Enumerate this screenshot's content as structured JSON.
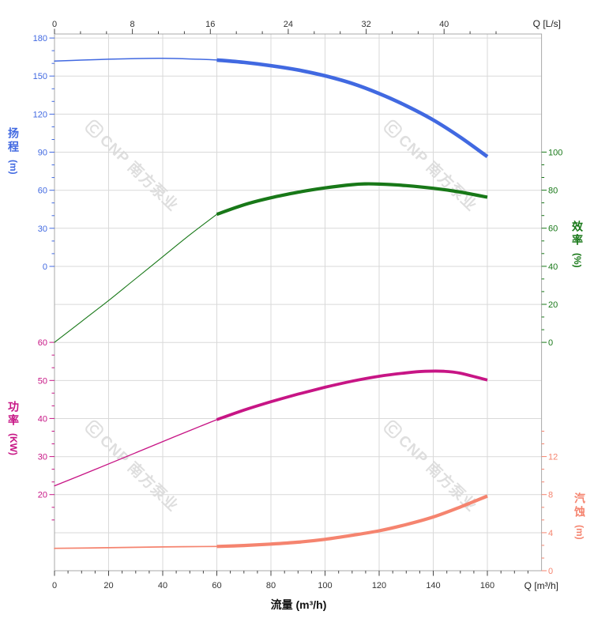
{
  "watermark": {
    "text": "CNP 南方泵业"
  },
  "chart_data": {
    "type": "line",
    "legend_position": "none",
    "grid": true,
    "axes": {
      "top": {
        "corner_label": "Q [L/s]",
        "ticks": [
          0,
          8,
          16,
          24,
          32,
          40
        ],
        "range_lps": [
          0,
          50
        ]
      },
      "bottom": {
        "axis_label": "流量 (m³/h)",
        "corner_label": "Q [m³/h]",
        "ticks": [
          0,
          20,
          40,
          60,
          80,
          100,
          120,
          140,
          160
        ],
        "range": [
          0,
          180
        ],
        "minor_step": 5
      },
      "head": {
        "label": "扬程",
        "unit": "(m)",
        "side": "left",
        "color": "#4169e1",
        "ticks": [
          180,
          150,
          120,
          90,
          60,
          30,
          0
        ],
        "range": [
          0,
          180
        ]
      },
      "efficiency": {
        "label": "效率",
        "unit": "(%)",
        "side": "right",
        "color": "#187818",
        "ticks": [
          100,
          80,
          60,
          40,
          20,
          0
        ],
        "range": [
          0,
          100
        ]
      },
      "power": {
        "label": "功率",
        "unit": "(KW)",
        "side": "left",
        "color": "#c71585",
        "ticks": [
          60,
          50,
          40,
          30,
          20
        ],
        "range": [
          0,
          60
        ]
      },
      "npsh": {
        "label": "汽蚀",
        "unit": "(m)",
        "side": "right",
        "color": "#f5846f",
        "ticks": [
          12,
          8,
          4,
          0
        ],
        "range": [
          0,
          12
        ]
      }
    },
    "series": [
      {
        "name": "head",
        "axis": "head",
        "color": "#4169e1",
        "thick_from": 60,
        "points": [
          [
            0,
            161.8
          ],
          [
            10,
            162.6
          ],
          [
            20,
            163.3
          ],
          [
            30,
            163.8
          ],
          [
            40,
            164.0
          ],
          [
            50,
            163.5
          ],
          [
            60,
            162.7
          ],
          [
            70,
            160.8
          ],
          [
            80,
            158.2
          ],
          [
            90,
            154.8
          ],
          [
            100,
            150.2
          ],
          [
            110,
            144.2
          ],
          [
            120,
            136.2
          ],
          [
            130,
            126.6
          ],
          [
            140,
            115.4
          ],
          [
            150,
            101.8
          ],
          [
            160,
            86.5
          ]
        ]
      },
      {
        "name": "efficiency",
        "axis": "efficiency",
        "color": "#187818",
        "thick_from": 60,
        "points": [
          [
            0,
            0
          ],
          [
            10,
            11
          ],
          [
            20,
            22
          ],
          [
            30,
            33.5
          ],
          [
            40,
            45
          ],
          [
            50,
            56.5
          ],
          [
            60,
            67.3
          ],
          [
            70,
            72.3
          ],
          [
            80,
            76.0
          ],
          [
            90,
            78.9
          ],
          [
            100,
            81.2
          ],
          [
            110,
            82.9
          ],
          [
            115,
            83.3
          ],
          [
            120,
            83.2
          ],
          [
            130,
            82.4
          ],
          [
            140,
            81.0
          ],
          [
            150,
            79.0
          ],
          [
            160,
            76.3
          ]
        ]
      },
      {
        "name": "power",
        "axis": "power",
        "color": "#c71585",
        "thick_from": 60,
        "points": [
          [
            0,
            22.3
          ],
          [
            15,
            26.6
          ],
          [
            30,
            31.0
          ],
          [
            45,
            35.4
          ],
          [
            60,
            39.7
          ],
          [
            70,
            42.2
          ],
          [
            80,
            44.4
          ],
          [
            90,
            46.4
          ],
          [
            100,
            48.2
          ],
          [
            110,
            49.8
          ],
          [
            120,
            51.1
          ],
          [
            130,
            52.0
          ],
          [
            137,
            52.4
          ],
          [
            144,
            52.4
          ],
          [
            150,
            51.9
          ],
          [
            160,
            50.1
          ]
        ]
      },
      {
        "name": "npsh",
        "axis": "npsh",
        "color": "#f5846f",
        "thick_from": 60,
        "points": [
          [
            0,
            2.35
          ],
          [
            20,
            2.42
          ],
          [
            40,
            2.5
          ],
          [
            60,
            2.55
          ],
          [
            70,
            2.65
          ],
          [
            80,
            2.8
          ],
          [
            90,
            3.0
          ],
          [
            100,
            3.3
          ],
          [
            110,
            3.72
          ],
          [
            120,
            4.2
          ],
          [
            130,
            4.85
          ],
          [
            140,
            5.65
          ],
          [
            150,
            6.7
          ],
          [
            160,
            7.85
          ]
        ]
      }
    ]
  }
}
